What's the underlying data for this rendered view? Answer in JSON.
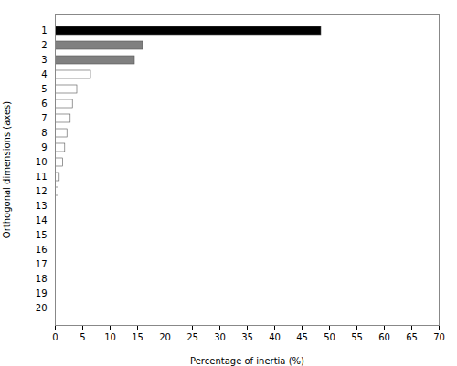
{
  "chart_data": {
    "type": "bar",
    "orientation": "horizontal",
    "categories": [
      1,
      2,
      3,
      4,
      5,
      6,
      7,
      8,
      9,
      10,
      11,
      12,
      13,
      14,
      15,
      16,
      17,
      18,
      19,
      20
    ],
    "values": [
      48.5,
      16.0,
      14.5,
      6.5,
      4.0,
      3.2,
      2.8,
      2.2,
      1.8,
      1.4,
      0.8,
      0.6,
      0.0,
      0.0,
      0.0,
      0.0,
      0.0,
      0.0,
      0.0,
      0.0
    ],
    "colors": [
      "#000000",
      "#808080",
      "#808080",
      "#ffffff",
      "#ffffff",
      "#ffffff",
      "#ffffff",
      "#ffffff",
      "#ffffff",
      "#ffffff",
      "#ffffff",
      "#ffffff",
      "#ffffff",
      "#ffffff",
      "#ffffff",
      "#ffffff",
      "#ffffff",
      "#ffffff",
      "#ffffff",
      "#ffffff"
    ],
    "xlabel": "Percentage of inertia (%)",
    "ylabel": "Orthogonal dimensions (axes)",
    "xlim": [
      0,
      70
    ],
    "xticks": [
      0,
      5,
      10,
      15,
      20,
      25,
      30,
      35,
      40,
      45,
      50,
      55,
      60,
      65,
      70
    ]
  }
}
